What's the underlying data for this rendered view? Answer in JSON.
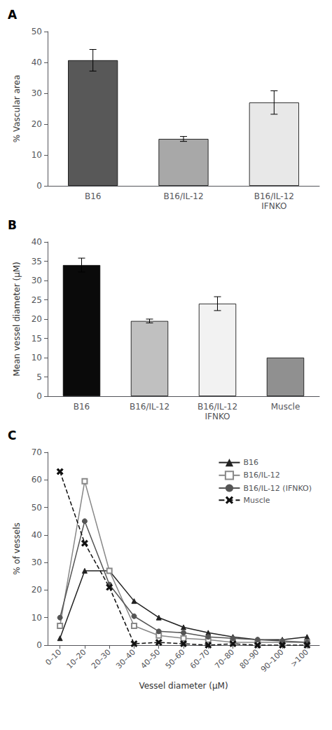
{
  "chart_data": [
    {
      "type": "bar",
      "title": "A",
      "categories": [
        "B16",
        "B16/IL-12",
        "B16/IL-12\nIFNKO"
      ],
      "values": [
        40.7,
        15.2,
        27.0
      ],
      "errors": [
        3.5,
        0.8,
        3.8
      ],
      "colors": [
        "#585858",
        "#a8a8a8",
        "#e8e8e8"
      ],
      "ylabel": "% Vascular area",
      "ylim": [
        0,
        50
      ],
      "yticks": [
        0,
        10,
        20,
        30,
        40,
        50
      ],
      "grid": false
    },
    {
      "type": "bar",
      "title": "B",
      "categories": [
        "B16",
        "B16/IL-12",
        "B16/IL-12\nIFNKO",
        "Muscle"
      ],
      "values": [
        34.0,
        19.5,
        24.0,
        10.0
      ],
      "errors": [
        1.8,
        0.5,
        1.8,
        0.0
      ],
      "colors": [
        "#0a0a0a",
        "#c0c0c0",
        "#f2f2f2",
        "#909090"
      ],
      "ylabel": "Mean vessel diameter (μM)",
      "ylim": [
        0,
        40
      ],
      "yticks": [
        0,
        5,
        10,
        15,
        20,
        25,
        30,
        35,
        40
      ],
      "grid": false
    },
    {
      "type": "line",
      "title": "C",
      "categories": [
        "0–10",
        "10–20",
        "20–30",
        "30–40",
        "40–50",
        "50–60",
        "60–70",
        "70–80",
        "80–90",
        "90–100",
        ">100"
      ],
      "series": [
        {
          "name": "B16",
          "color": "#222222",
          "marker": "triangle",
          "line_style": "solid",
          "values": [
            2.5,
            27.0,
            27.0,
            16.0,
            10.0,
            6.5,
            4.5,
            3.0,
            2.0,
            2.0,
            3.0
          ]
        },
        {
          "name": "B16/IL-12",
          "color": "#888888",
          "marker": "open_square",
          "line_style": "solid",
          "values": [
            7.0,
            59.5,
            27.0,
            7.0,
            3.5,
            2.5,
            2.0,
            1.0,
            1.0,
            1.0,
            1.0
          ]
        },
        {
          "name": "B16/IL-12 (IFNKO)",
          "color": "#555555",
          "marker": "circle",
          "line_style": "solid",
          "values": [
            10.0,
            45.0,
            22.0,
            10.5,
            5.0,
            4.5,
            3.0,
            2.5,
            2.0,
            1.5,
            1.0
          ]
        },
        {
          "name": "Muscle",
          "color": "#111111",
          "marker": "x",
          "line_style": "dashed",
          "values": [
            63.0,
            37.0,
            21.0,
            0.5,
            1.0,
            0.5,
            0.0,
            0.5,
            0.0,
            0.0,
            0.0
          ]
        }
      ],
      "xlabel": "Vessel diameter (μM)",
      "ylabel": "% of vessels",
      "ylim": [
        0,
        70
      ],
      "yticks": [
        0,
        10,
        20,
        30,
        40,
        50,
        60,
        70
      ],
      "grid": false,
      "legend": "upper right"
    }
  ]
}
